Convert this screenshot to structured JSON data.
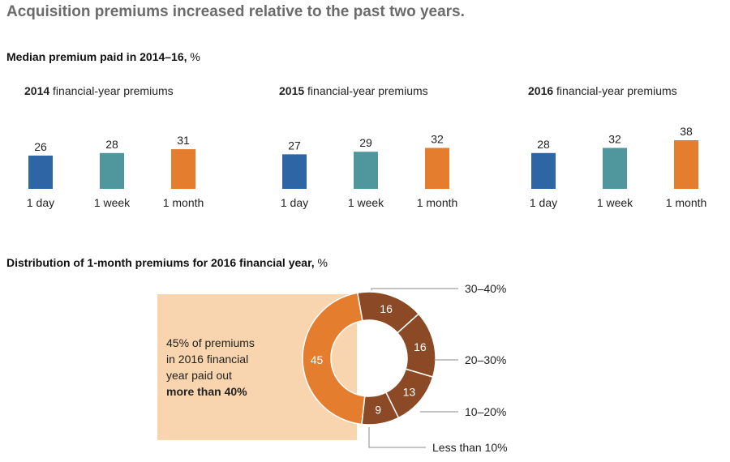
{
  "title": "Acquisition premiums increased relative to the past two years.",
  "bar_section": {
    "title_bold": "Median premium paid in 2014–16,",
    "title_unit": " %"
  },
  "pie_section": {
    "title_bold": "Distribution of 1-month premiums for 2016 financial year,",
    "title_unit": " %"
  },
  "callout": {
    "line1": "45% of premiums",
    "line2": "in 2016 financial",
    "line3": "year paid out",
    "bold": "more than 40%"
  },
  "colors": {
    "day": "#2e65a5",
    "week": "#50979d",
    "month": "#e57d2f",
    "pie_orange": "#e57d2f",
    "pie_brown": "#8b4a25",
    "callout_bg": "#f8d5ae"
  },
  "chart_data": [
    {
      "type": "bar",
      "title_year": "2014",
      "title_rest": " financial-year premiums",
      "categories": [
        "1 day",
        "1 week",
        "1 month"
      ],
      "values": [
        26,
        28,
        31
      ]
    },
    {
      "type": "bar",
      "title_year": "2015",
      "title_rest": " financial-year premiums",
      "categories": [
        "1 day",
        "1 week",
        "1 month"
      ],
      "values": [
        27,
        29,
        32
      ]
    },
    {
      "type": "bar",
      "title_year": "2016",
      "title_rest": " financial-year premiums",
      "categories": [
        "1 day",
        "1 week",
        "1 month"
      ],
      "values": [
        28,
        32,
        38
      ]
    },
    {
      "type": "pie",
      "donut": true,
      "slices": [
        {
          "label": "30–40%",
          "value": 16
        },
        {
          "label": "20–30%",
          "value": 16
        },
        {
          "label": "10–20%",
          "value": 13
        },
        {
          "label": "Less than 10%",
          "value": 9
        },
        {
          "label": "",
          "value": 45
        }
      ]
    }
  ]
}
